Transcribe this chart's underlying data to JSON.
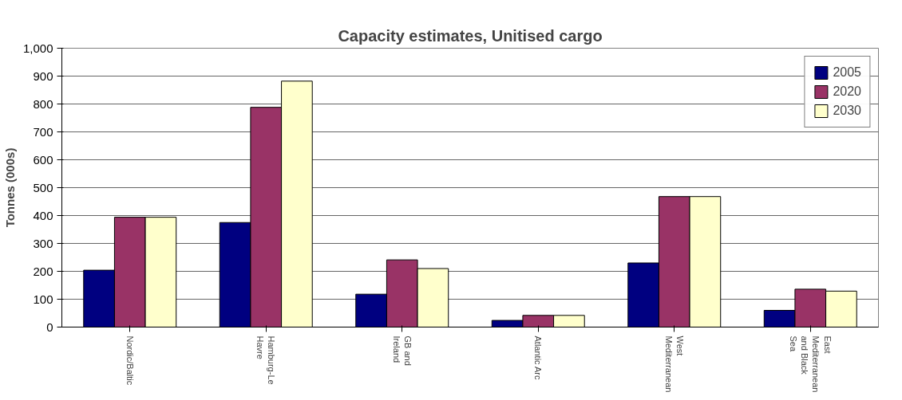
{
  "chart_data": {
    "type": "bar",
    "title": "Capacity estimates, Unitised cargo",
    "ylabel": "Tonnes (000s)",
    "categories": [
      "Nordic/Baltic",
      "Hamburg-Le Havre",
      "GB and Ireland",
      "Atlantic Arc",
      "West Mediterranean",
      "East Mediterranean and Black Sea"
    ],
    "series": [
      {
        "name": "2005",
        "color": "#000080",
        "values": [
          204,
          375,
          118,
          24,
          230,
          60
        ]
      },
      {
        "name": "2020",
        "color": "#993366",
        "values": [
          394,
          788,
          241,
          42,
          468,
          136
        ]
      },
      {
        "name": "2030",
        "color": "#ffffcc",
        "values": [
          394,
          882,
          210,
          42,
          468,
          129
        ]
      }
    ],
    "ylim": [
      0,
      1000
    ],
    "yticks": [
      0,
      100,
      200,
      300,
      400,
      500,
      600,
      700,
      800,
      900,
      {
        "value": 1000,
        "label": "1,000"
      }
    ],
    "grid": "y",
    "legend": "top right"
  }
}
